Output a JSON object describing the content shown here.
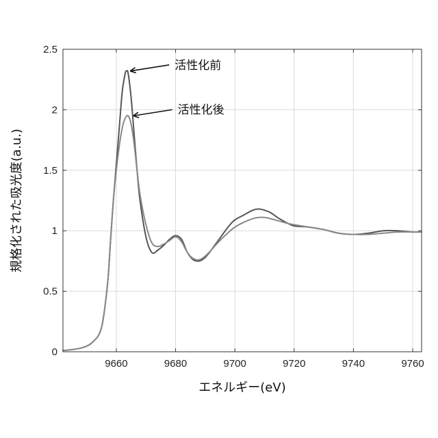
{
  "chart_data": {
    "type": "line",
    "xlabel": "エネルギー(eV)",
    "ylabel": "規格化された吸光度(a.u.)",
    "xlim": [
      9642,
      9763
    ],
    "ylim": [
      0,
      2.5
    ],
    "xticks": [
      9660,
      9680,
      9700,
      9720,
      9740,
      9760
    ],
    "yticks": [
      0,
      0.5,
      1,
      1.5,
      2,
      2.5
    ],
    "xtick_labels": [
      "9660",
      "9680",
      "9700",
      "9720",
      "9740",
      "9760"
    ],
    "ytick_labels": [
      "0",
      "0.5",
      "1",
      "1.5",
      "2",
      "2.5"
    ],
    "grid": true,
    "series": [
      {
        "name": "活性化前",
        "color": "#555555",
        "x": [
          9642,
          9648,
          9652,
          9655,
          9657,
          9658,
          9659,
          9660,
          9661,
          9662,
          9663,
          9663.5,
          9664,
          9665,
          9666,
          9667,
          9668,
          9670,
          9672,
          9674,
          9676,
          9678,
          9680,
          9682,
          9684,
          9686,
          9688,
          9690,
          9692,
          9695,
          9698,
          9700,
          9703,
          9706,
          9708,
          9710,
          9712,
          9715,
          9718,
          9720,
          9725,
          9730,
          9735,
          9740,
          9745,
          9750,
          9755,
          9760,
          9763
        ],
        "y": [
          0.01,
          0.03,
          0.08,
          0.2,
          0.55,
          0.9,
          1.25,
          1.55,
          1.85,
          2.15,
          2.3,
          2.32,
          2.3,
          2.1,
          1.8,
          1.5,
          1.25,
          0.95,
          0.82,
          0.84,
          0.88,
          0.93,
          0.96,
          0.93,
          0.82,
          0.76,
          0.75,
          0.78,
          0.84,
          0.94,
          1.04,
          1.09,
          1.13,
          1.17,
          1.18,
          1.17,
          1.15,
          1.1,
          1.06,
          1.04,
          1.03,
          1.01,
          0.98,
          0.97,
          0.98,
          1.0,
          1.0,
          0.99,
          0.99
        ]
      },
      {
        "name": "活性化後",
        "color": "#888888",
        "x": [
          9642,
          9648,
          9652,
          9655,
          9657,
          9658,
          9659,
          9660,
          9661,
          9662,
          9663,
          9664,
          9665,
          9666,
          9667,
          9668,
          9670,
          9672,
          9674,
          9676,
          9678,
          9680,
          9682,
          9684,
          9686,
          9688,
          9690,
          9692,
          9695,
          9698,
          9700,
          9703,
          9706,
          9708,
          9710,
          9712,
          9715,
          9718,
          9720,
          9725,
          9730,
          9735,
          9740,
          9745,
          9750,
          9755,
          9760,
          9763
        ],
        "y": [
          0.01,
          0.03,
          0.08,
          0.2,
          0.55,
          0.9,
          1.25,
          1.5,
          1.7,
          1.85,
          1.93,
          1.95,
          1.88,
          1.72,
          1.5,
          1.3,
          1.05,
          0.9,
          0.87,
          0.89,
          0.92,
          0.95,
          0.91,
          0.82,
          0.77,
          0.76,
          0.79,
          0.84,
          0.92,
          0.99,
          1.03,
          1.07,
          1.1,
          1.11,
          1.11,
          1.1,
          1.08,
          1.06,
          1.05,
          1.03,
          1.01,
          0.98,
          0.97,
          0.97,
          0.98,
          0.99,
          0.99,
          0.99
        ]
      }
    ],
    "annotations": [
      {
        "text": "活性化前",
        "x": 9664,
        "y": 2.32
      },
      {
        "text": "活性化後",
        "x": 9665,
        "y": 1.95
      }
    ]
  }
}
